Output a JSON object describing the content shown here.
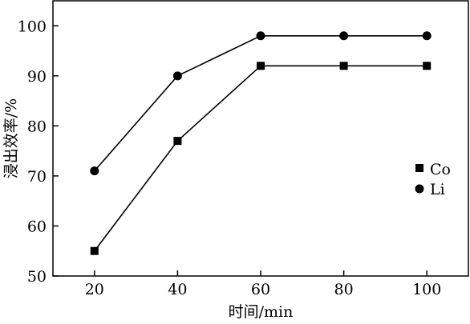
{
  "chart_data": {
    "type": "line",
    "title": "",
    "xlabel": "时间/min",
    "ylabel": "浸出效率/%",
    "x": [
      20,
      40,
      60,
      80,
      100
    ],
    "xlim": [
      10,
      110
    ],
    "ylim": [
      50,
      105
    ],
    "xticks": [
      20,
      40,
      60,
      80,
      100
    ],
    "yticks": [
      50,
      60,
      70,
      80,
      90,
      100
    ],
    "grid": false,
    "legend_position": "right",
    "series": [
      {
        "name": "Co",
        "marker": "square",
        "color": "#000000",
        "values": [
          55,
          77,
          92,
          92,
          92
        ]
      },
      {
        "name": "Li",
        "marker": "circle",
        "color": "#000000",
        "values": [
          71,
          90,
          98,
          98,
          98
        ]
      }
    ]
  }
}
